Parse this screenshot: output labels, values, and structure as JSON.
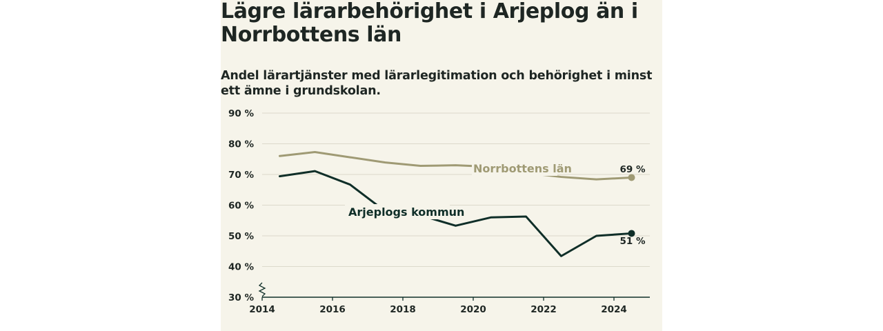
{
  "colors": {
    "background": "#f6f4ea",
    "grid": "#dcd9cb",
    "axis": "#0f2e28"
  },
  "chart_data": {
    "type": "line",
    "title": "Lägre lärarbehörighet i Arjeplog än i Norrbottens län",
    "subtitle": "Andel lärartjänster med lärarlegitimation och behörighet i minst ett ämne i grundskolan.",
    "xlabel": "",
    "ylabel": "",
    "xlim": [
      2014,
      2025
    ],
    "ylim": [
      30,
      90
    ],
    "axis_break": true,
    "grid": true,
    "y_ticks": [
      "30 %",
      "40 %",
      "50 %",
      "60 %",
      "70 %",
      "80 %",
      "90 %"
    ],
    "y_tick_values": [
      30,
      40,
      50,
      60,
      70,
      80,
      90
    ],
    "x_ticks": [
      "2014",
      "2016",
      "2018",
      "2020",
      "2022",
      "2024"
    ],
    "x_tick_values": [
      2014,
      2016,
      2018,
      2020,
      2022,
      2024
    ],
    "x": [
      2014.5,
      2015.5,
      2016.5,
      2017.5,
      2018.5,
      2019.5,
      2020.5,
      2021.5,
      2022.5,
      2023.5,
      2024.5
    ],
    "series": [
      {
        "name": "Norrbottens län",
        "color": "#9f9a74",
        "values": [
          76.0,
          77.3,
          75.6,
          73.9,
          72.8,
          73.0,
          72.5,
          70.5,
          69.2,
          68.4,
          69.0
        ],
        "end_label": "69 %"
      },
      {
        "name": "Arjeplogs kommun",
        "color": "#0f2e28",
        "values": [
          69.4,
          71.1,
          66.7,
          58.0,
          56.7,
          53.3,
          56.0,
          56.3,
          43.4,
          50.0,
          50.8
        ],
        "end_label": "51 %"
      }
    ]
  }
}
